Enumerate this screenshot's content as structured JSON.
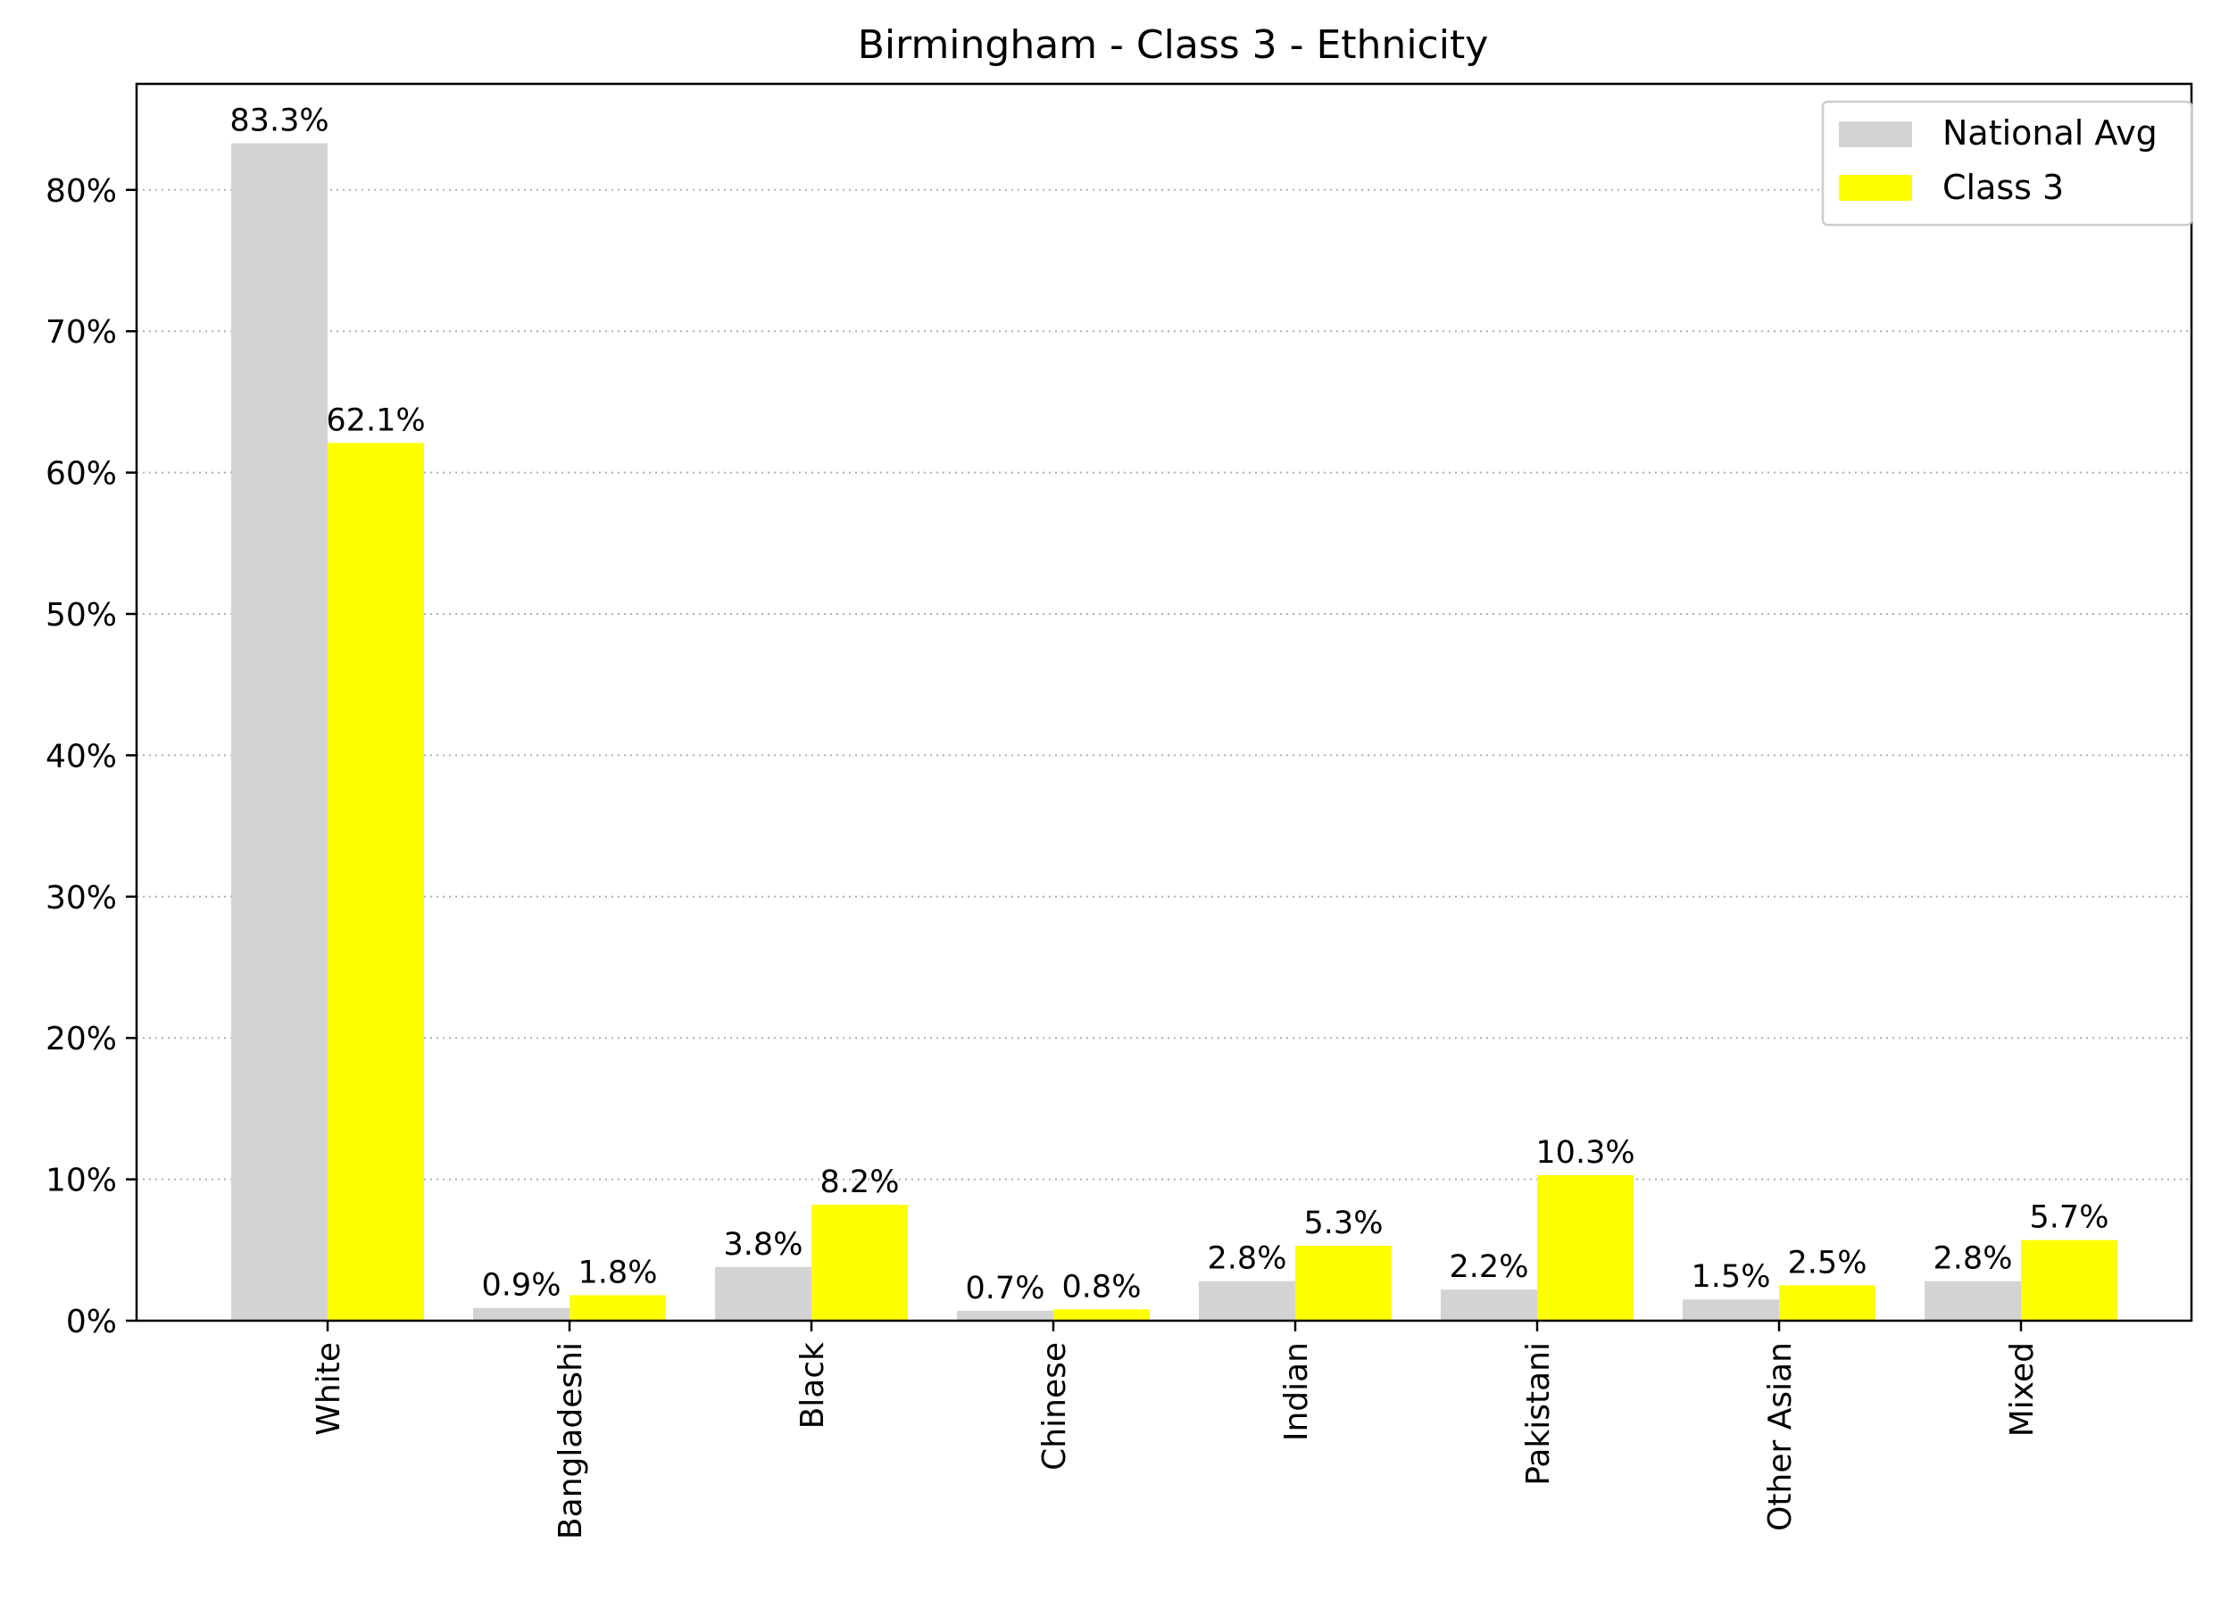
{
  "chart_data": {
    "type": "bar",
    "title": "Birmingham - Class 3 - Ethnicity",
    "xlabel": "",
    "ylabel": "",
    "categories": [
      "White",
      "Bangladeshi",
      "Black",
      "Chinese",
      "Indian",
      "Pakistani",
      "Other Asian",
      "Mixed"
    ],
    "series": [
      {
        "name": "National Avg",
        "color": "#d3d3d3",
        "values": [
          83.3,
          0.9,
          3.8,
          0.7,
          2.8,
          2.2,
          1.5,
          2.8
        ],
        "labels": [
          "83.3%",
          "0.9%",
          "3.8%",
          "0.7%",
          "2.8%",
          "2.2%",
          "1.5%",
          "2.8%"
        ]
      },
      {
        "name": "Class 3",
        "color": "#ffff00",
        "values": [
          62.1,
          1.8,
          8.2,
          0.8,
          5.3,
          10.3,
          2.5,
          5.7
        ],
        "labels": [
          "62.1%",
          "1.8%",
          "8.2%",
          "0.8%",
          "5.3%",
          "10.3%",
          "2.5%",
          "5.7%"
        ]
      }
    ],
    "ylim": [
      0,
      87.5
    ],
    "yticks": [
      0,
      10,
      20,
      30,
      40,
      50,
      60,
      70,
      80
    ],
    "ytick_labels": [
      "0%",
      "10%",
      "20%",
      "30%",
      "40%",
      "50%",
      "60%",
      "70%",
      "80%"
    ],
    "grid": "y-dotted",
    "legend": "top-right"
  }
}
